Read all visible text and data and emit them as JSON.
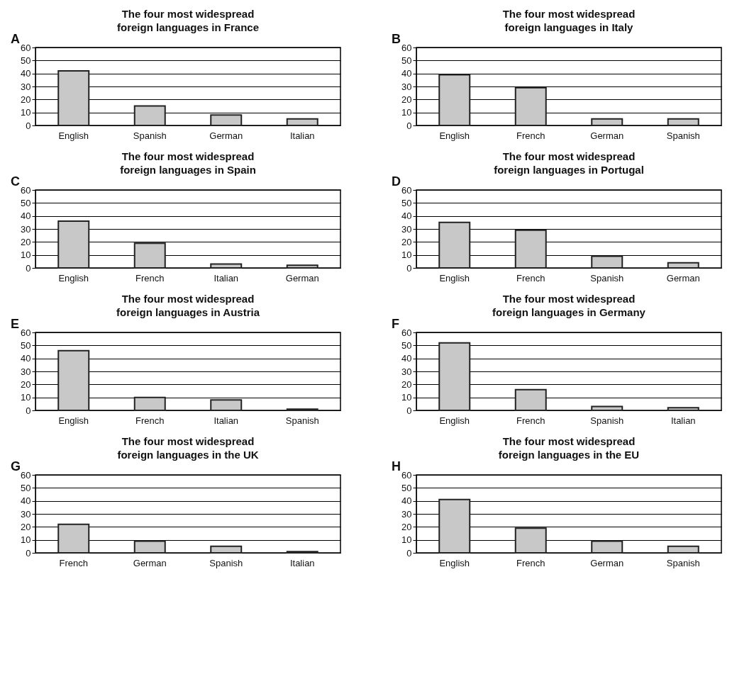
{
  "chart_data": [
    {
      "type": "bar",
      "title": "The four most widespread\nforeign languages in France",
      "annotations": [
        "A"
      ],
      "categories": [
        "English",
        "Spanish",
        "German",
        "Italian"
      ],
      "values": [
        42,
        15,
        8,
        5
      ],
      "color": "#c8c8c8",
      "ylim": [
        0,
        60
      ],
      "yticks": [
        0,
        10,
        20,
        30,
        40,
        50,
        60
      ],
      "grid": "y"
    },
    {
      "type": "bar",
      "title": "The four most widespread\nforeign languages in Italy",
      "annotations": [
        "B"
      ],
      "categories": [
        "English",
        "French",
        "German",
        "Spanish"
      ],
      "values": [
        39,
        29,
        5,
        5
      ],
      "color": "#c8c8c8",
      "ylim": [
        0,
        60
      ],
      "yticks": [
        0,
        10,
        20,
        30,
        40,
        50,
        60
      ],
      "grid": "y"
    },
    {
      "type": "bar",
      "title": "The four most widespread\nforeign languages in Spain",
      "annotations": [
        "C"
      ],
      "categories": [
        "English",
        "French",
        "Italian",
        "German"
      ],
      "values": [
        36,
        19,
        3,
        2
      ],
      "color": "#c8c8c8",
      "ylim": [
        0,
        60
      ],
      "yticks": [
        0,
        10,
        20,
        30,
        40,
        50,
        60
      ],
      "grid": "y"
    },
    {
      "type": "bar",
      "title": "The four most widespread\nforeign languages in Portugal",
      "annotations": [
        "D"
      ],
      "categories": [
        "English",
        "French",
        "Spanish",
        "German"
      ],
      "values": [
        35,
        29,
        9,
        4
      ],
      "color": "#c8c8c8",
      "ylim": [
        0,
        60
      ],
      "yticks": [
        0,
        10,
        20,
        30,
        40,
        50,
        60
      ],
      "grid": "y"
    },
    {
      "type": "bar",
      "title": "The four most widespread\nforeign languages in Austria",
      "annotations": [
        "E"
      ],
      "categories": [
        "English",
        "French",
        "Italian",
        "Spanish"
      ],
      "values": [
        46,
        10,
        8,
        1
      ],
      "color": "#c8c8c8",
      "ylim": [
        0,
        60
      ],
      "yticks": [
        0,
        10,
        20,
        30,
        40,
        50,
        60
      ],
      "grid": "y"
    },
    {
      "type": "bar",
      "title": "The four most widespread\nforeign languages in Germany",
      "annotations": [
        "F"
      ],
      "categories": [
        "English",
        "French",
        "Spanish",
        "Italian"
      ],
      "values": [
        52,
        16,
        3,
        2
      ],
      "color": "#c8c8c8",
      "ylim": [
        0,
        60
      ],
      "yticks": [
        0,
        10,
        20,
        30,
        40,
        50,
        60
      ],
      "grid": "y"
    },
    {
      "type": "bar",
      "title": "The four most widespread\nforeign languages in the UK",
      "annotations": [
        "G"
      ],
      "categories": [
        "French",
        "German",
        "Spanish",
        "Italian"
      ],
      "values": [
        22,
        9,
        5,
        1
      ],
      "color": "#c8c8c8",
      "ylim": [
        0,
        60
      ],
      "yticks": [
        0,
        10,
        20,
        30,
        40,
        50,
        60
      ],
      "grid": "y"
    },
    {
      "type": "bar",
      "title": "The four most widespread\nforeign languages in the EU",
      "annotations": [
        "H"
      ],
      "categories": [
        "English",
        "French",
        "German",
        "Spanish"
      ],
      "values": [
        41,
        19,
        9,
        5
      ],
      "color": "#c8c8c8",
      "ylim": [
        0,
        60
      ],
      "yticks": [
        0,
        10,
        20,
        30,
        40,
        50,
        60
      ],
      "grid": "y"
    }
  ]
}
